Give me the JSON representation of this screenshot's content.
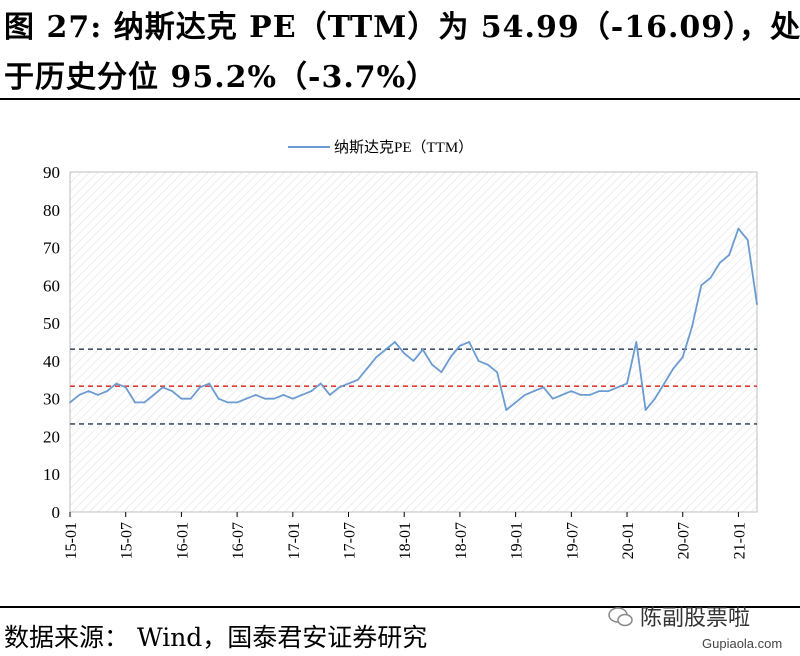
{
  "title": {
    "line1": "图 27: 纳斯达克 PE（TTM）为 54.99（-16.09），处",
    "line2": "于历史分位 95.2%（-3.7%）"
  },
  "source": "数据来源：  Wind，国泰君安证券研究",
  "watermark": {
    "brand": "陈副股票啦",
    "site": "Gupiaola.com",
    "icon": "wechat-icon"
  },
  "chart_data": {
    "type": "line",
    "title": "",
    "xlabel": "",
    "ylabel": "",
    "ylim": [
      0,
      90
    ],
    "yticks": [
      0,
      10,
      20,
      30,
      40,
      50,
      60,
      70,
      80,
      90
    ],
    "xlim": [
      "2015-01",
      "2021-03"
    ],
    "xticks": [
      "15-01",
      "15-07",
      "16-01",
      "16-07",
      "17-01",
      "17-07",
      "18-01",
      "18-07",
      "19-01",
      "19-07",
      "20-01",
      "20-07",
      "21-01"
    ],
    "grid": "diagonal hatch background",
    "legend": "top-center",
    "colors": {
      "series": "#6b9bd1",
      "upper": "#44546a",
      "mean": "#e03c31",
      "lower": "#44546a"
    },
    "series": [
      {
        "name": "纳斯达克PE（TTM）",
        "x": [
          "2015-01",
          "2015-02",
          "2015-03",
          "2015-04",
          "2015-05",
          "2015-06",
          "2015-07",
          "2015-08",
          "2015-09",
          "2015-10",
          "2015-11",
          "2015-12",
          "2016-01",
          "2016-02",
          "2016-03",
          "2016-04",
          "2016-05",
          "2016-06",
          "2016-07",
          "2016-08",
          "2016-09",
          "2016-10",
          "2016-11",
          "2016-12",
          "2017-01",
          "2017-02",
          "2017-03",
          "2017-04",
          "2017-05",
          "2017-06",
          "2017-07",
          "2017-08",
          "2017-09",
          "2017-10",
          "2017-11",
          "2017-12",
          "2018-01",
          "2018-02",
          "2018-03",
          "2018-04",
          "2018-05",
          "2018-06",
          "2018-07",
          "2018-08",
          "2018-09",
          "2018-10",
          "2018-11",
          "2018-12",
          "2019-01",
          "2019-02",
          "2019-03",
          "2019-04",
          "2019-05",
          "2019-06",
          "2019-07",
          "2019-08",
          "2019-09",
          "2019-10",
          "2019-11",
          "2019-12",
          "2020-01",
          "2020-02",
          "2020-03",
          "2020-04",
          "2020-05",
          "2020-06",
          "2020-07",
          "2020-08",
          "2020-09",
          "2020-10",
          "2020-11",
          "2020-12",
          "2021-01",
          "2021-02",
          "2021-03"
        ],
        "values": [
          29,
          31,
          32,
          31,
          32,
          34,
          33,
          29,
          29,
          31,
          33,
          32,
          30,
          30,
          33,
          34,
          30,
          29,
          29,
          30,
          31,
          30,
          30,
          31,
          30,
          31,
          32,
          34,
          31,
          33,
          34,
          35,
          38,
          41,
          43,
          45,
          42,
          40,
          43,
          39,
          37,
          41,
          44,
          45,
          40,
          39,
          37,
          27,
          29,
          31,
          32,
          33,
          30,
          31,
          32,
          31,
          31,
          32,
          32,
          33,
          34,
          45,
          27,
          30,
          34,
          38,
          41,
          49,
          60,
          62,
          66,
          68,
          75,
          72,
          55
        ]
      }
    ],
    "reference_lines": [
      {
        "label": "upper",
        "value": 43.1
      },
      {
        "label": "mean",
        "value": 33.3
      },
      {
        "label": "lower",
        "value": 23.3
      }
    ]
  }
}
